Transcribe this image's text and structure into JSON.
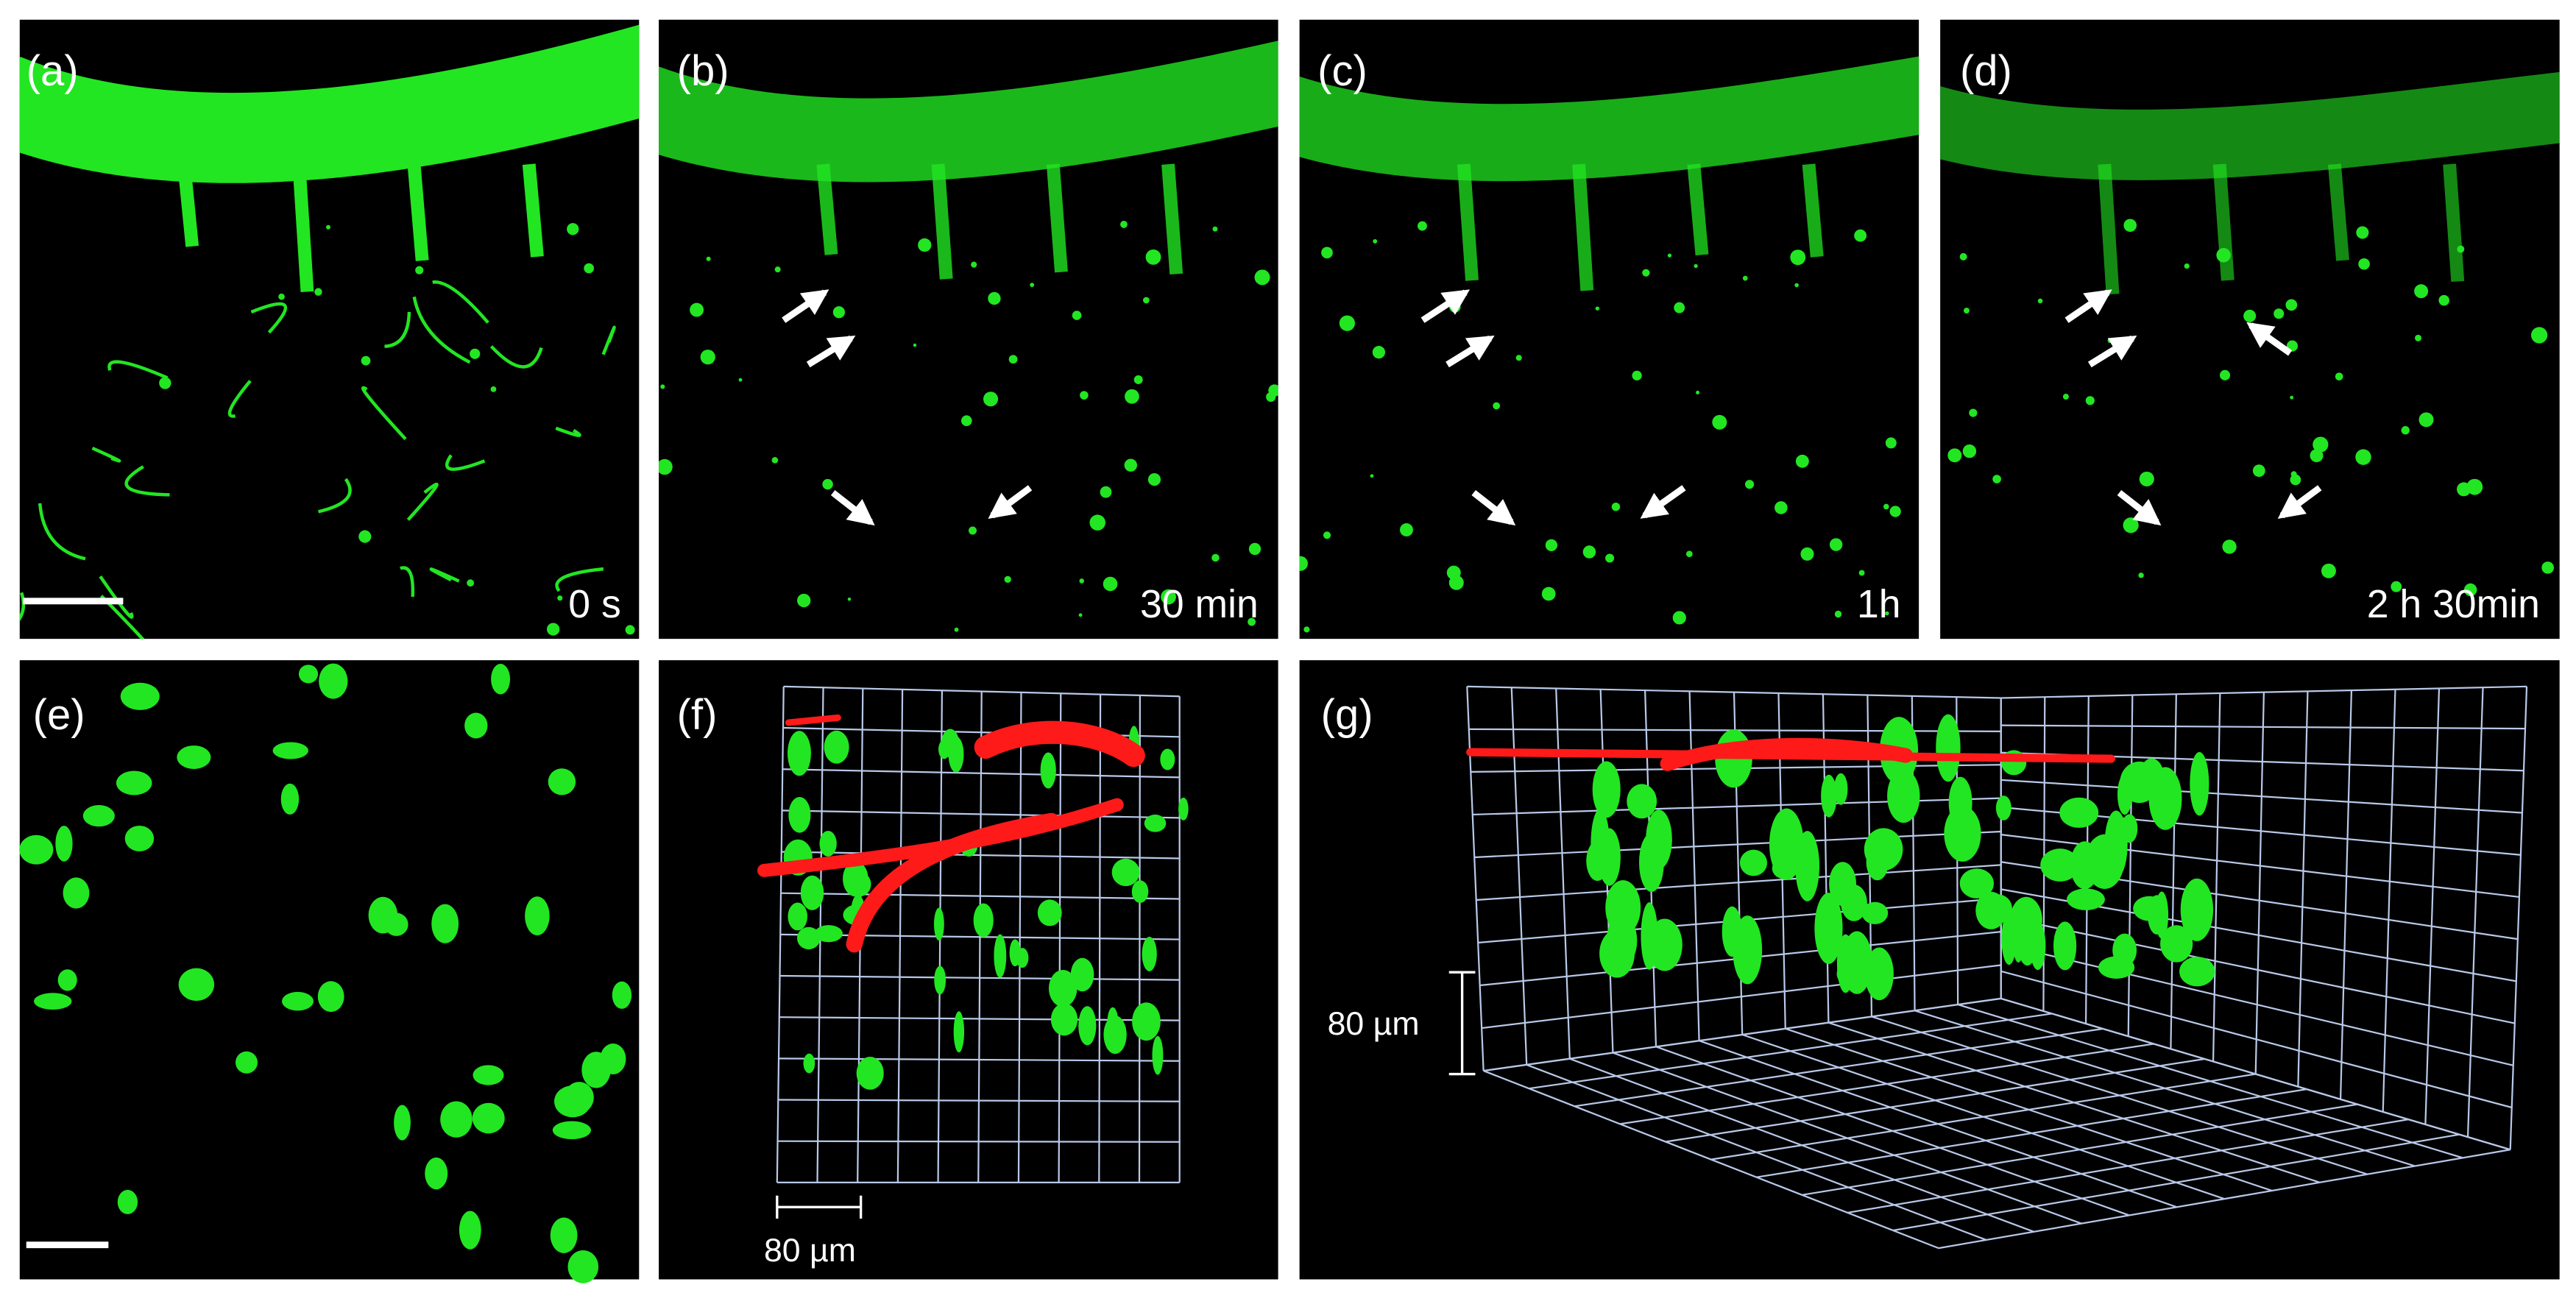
{
  "panels": [
    {
      "label": "(a)",
      "time": "0 s"
    },
    {
      "label": "(b)",
      "time": "30 min"
    },
    {
      "label": "(c)",
      "time": "1h"
    },
    {
      "label": "(d)",
      "time": "2 h 30min"
    },
    {
      "label": "(e)"
    },
    {
      "label": "(f)",
      "scale": "80 µm"
    },
    {
      "label": "(g)",
      "scale": "80 µm"
    }
  ]
}
